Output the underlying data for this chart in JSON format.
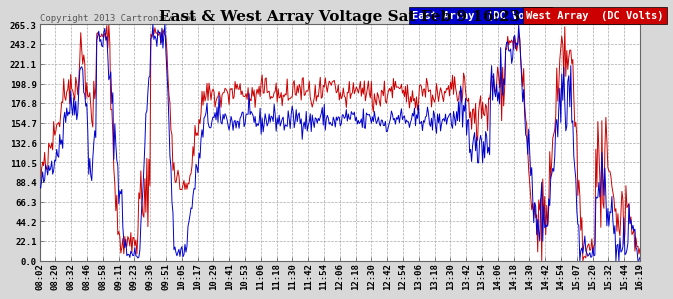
{
  "title": "East & West Array Voltage Sat Feb 9 16:23",
  "copyright": "Copyright 2013 Cartronics.com",
  "legend_east": "East Array  (DC Volts)",
  "legend_west": "West Array  (DC Volts)",
  "east_color": "#0000cc",
  "west_color": "#cc0000",
  "bg_color": "#d8d8d8",
  "plot_bg_color": "#ffffff",
  "grid_color": "#aaaaaa",
  "yticks": [
    0.0,
    22.1,
    44.2,
    66.3,
    88.4,
    110.5,
    132.6,
    154.7,
    176.8,
    198.9,
    221.1,
    243.2,
    265.3
  ],
  "xtick_labels": [
    "08:02",
    "08:20",
    "08:32",
    "08:46",
    "08:58",
    "09:11",
    "09:23",
    "09:36",
    "09:51",
    "10:05",
    "10:17",
    "10:29",
    "10:41",
    "10:53",
    "11:06",
    "11:18",
    "11:30",
    "11:42",
    "11:54",
    "12:06",
    "12:18",
    "12:30",
    "12:42",
    "12:54",
    "13:06",
    "13:18",
    "13:30",
    "13:42",
    "13:54",
    "14:06",
    "14:18",
    "14:30",
    "14:42",
    "14:54",
    "15:07",
    "15:20",
    "15:32",
    "15:44",
    "16:19"
  ],
  "ylim": [
    0.0,
    265.3
  ],
  "line_width": 0.7,
  "title_fontsize": 11,
  "tick_fontsize": 6.5,
  "legend_fontsize": 7.5,
  "copyright_fontsize": 6.5
}
